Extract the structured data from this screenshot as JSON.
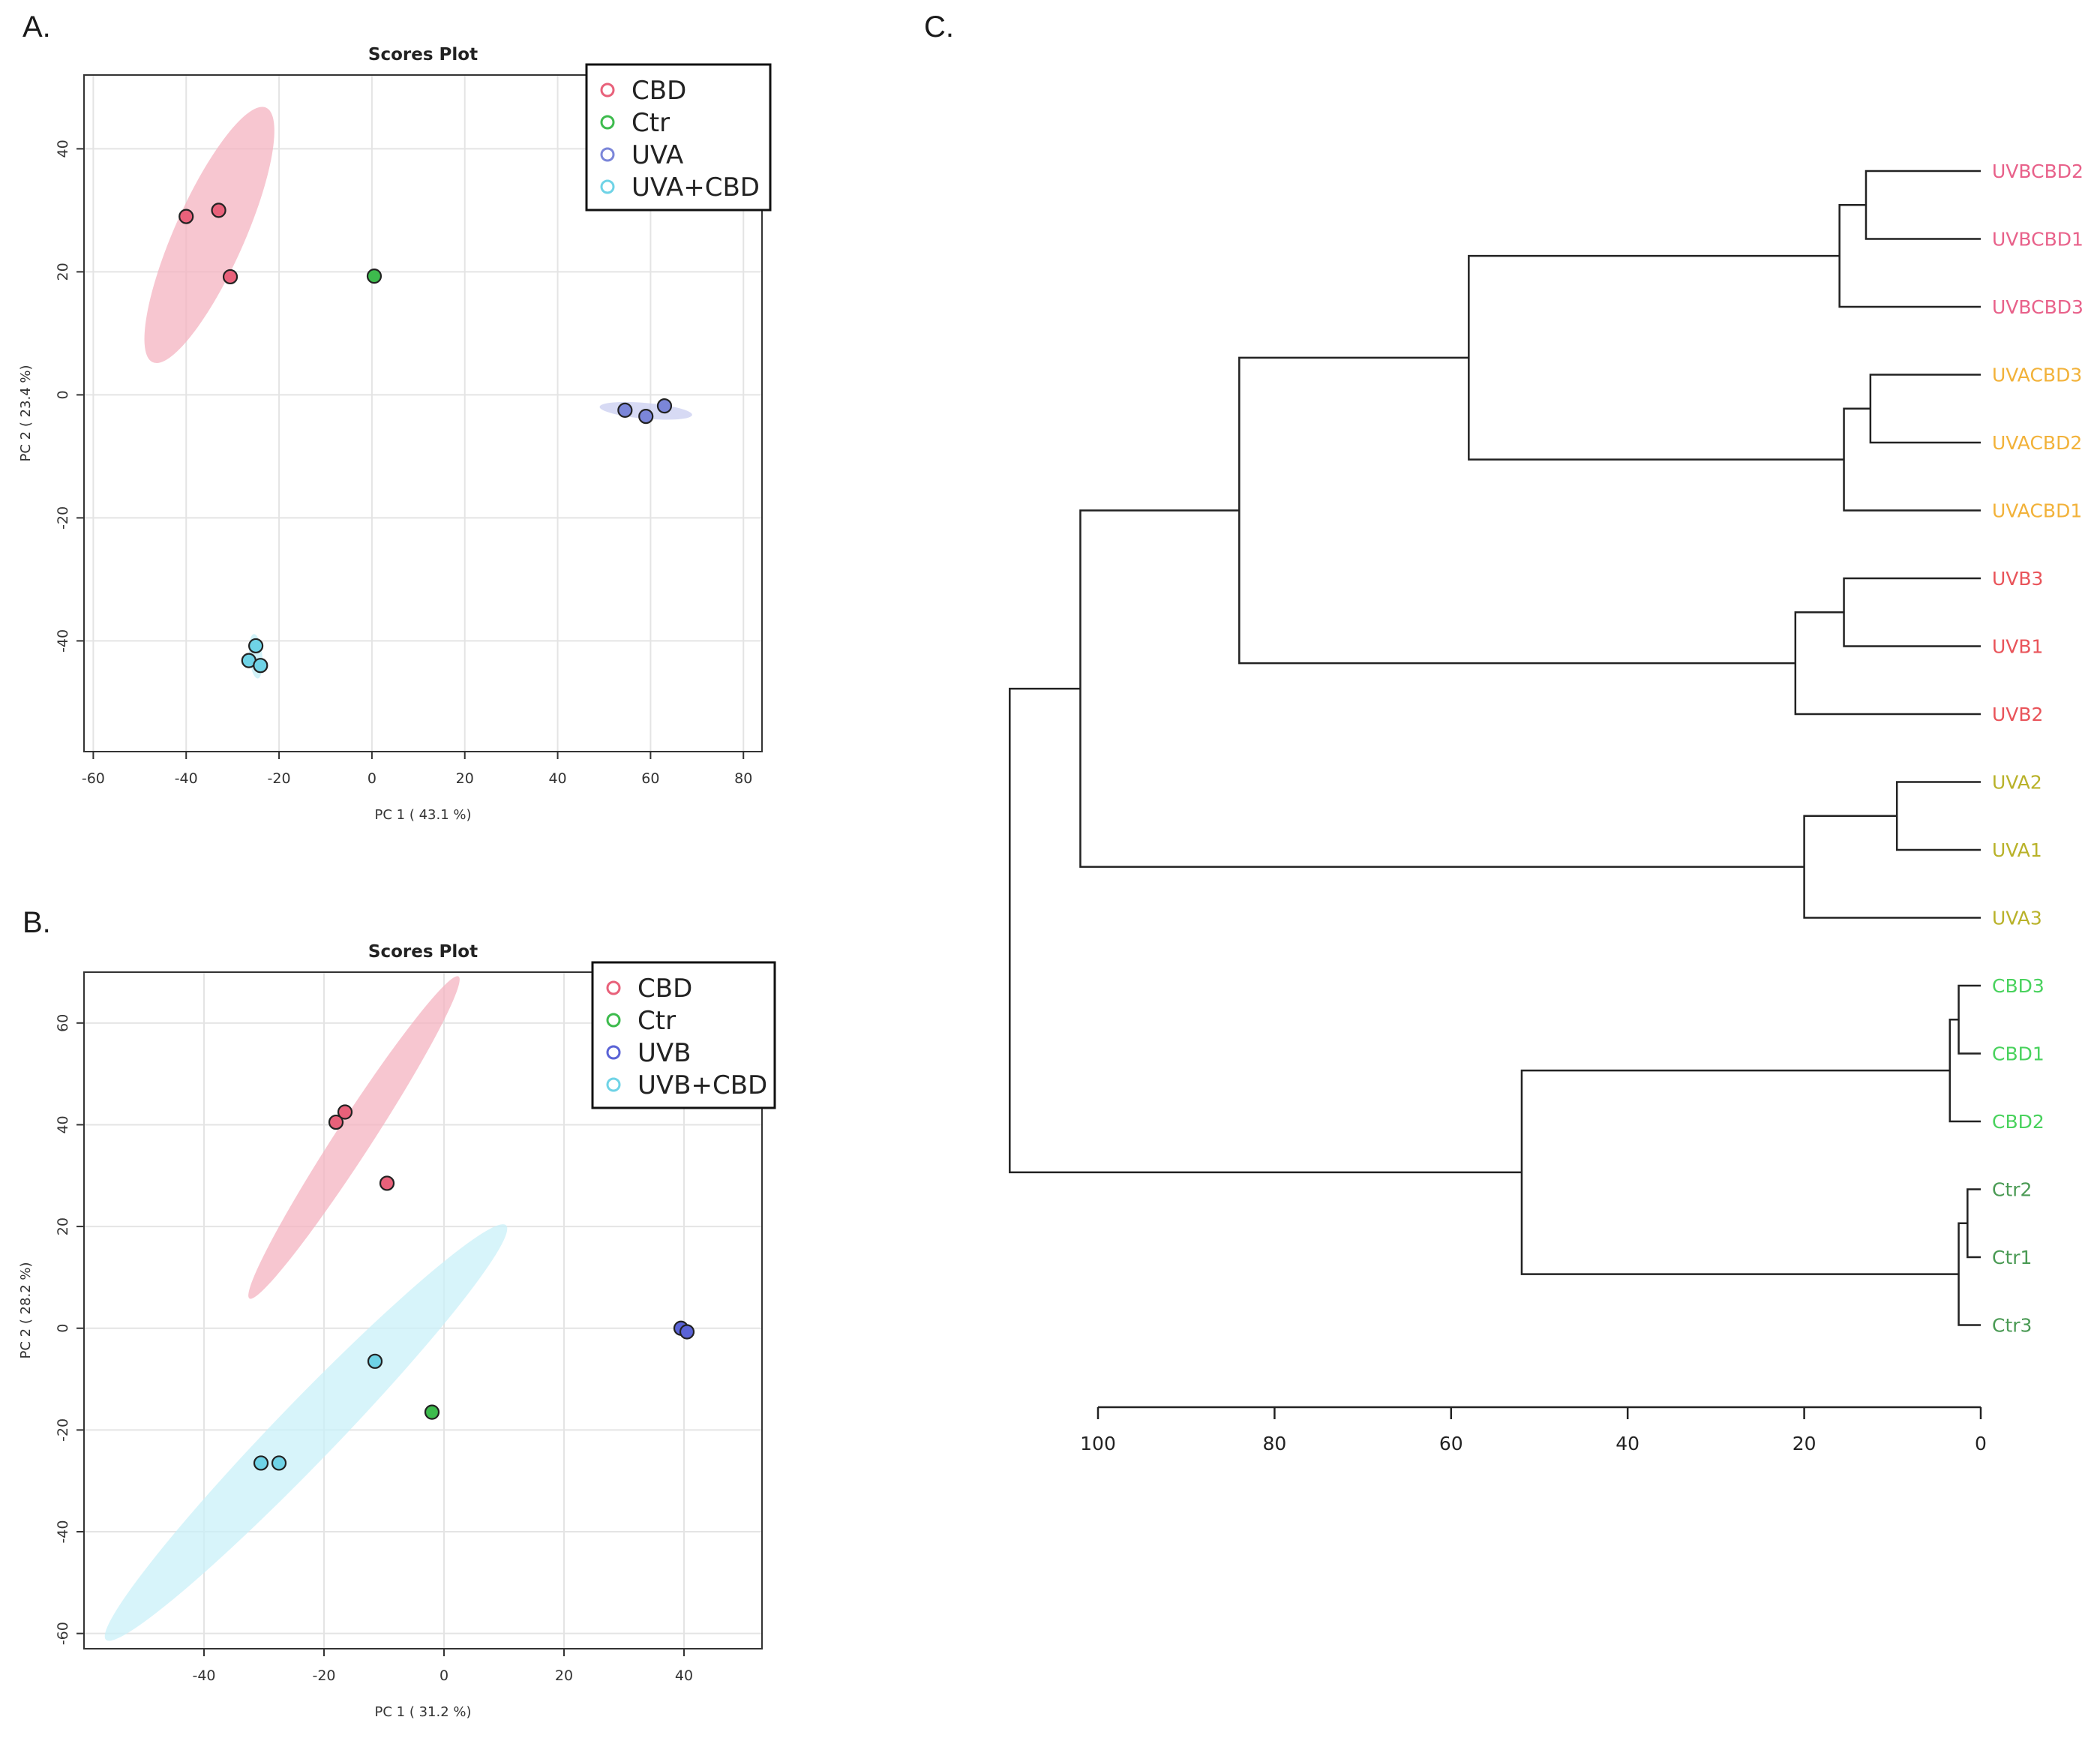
{
  "panels": {
    "a": {
      "letter": "A."
    },
    "b": {
      "letter": "B."
    },
    "c": {
      "letter": "C."
    }
  },
  "chart_data": [
    {
      "id": "A",
      "type": "scatter",
      "title": "Scores Plot",
      "xlabel": "PC 1 ( 43.1 %)",
      "ylabel": "PC 2 ( 23.4 %)",
      "xlim": [
        -62,
        84
      ],
      "ylim": [
        -58,
        52
      ],
      "xticks": [
        -60,
        -40,
        -20,
        0,
        20,
        40,
        60,
        80
      ],
      "yticks": [
        -40,
        -20,
        0,
        20,
        40
      ],
      "grid": true,
      "legend_position": "top-right",
      "series": [
        {
          "name": "CBD",
          "color": "#e8617a",
          "ellipse_color": "#f4b3c0",
          "points": [
            [
              -40,
              29
            ],
            [
              -33,
              30
            ],
            [
              -30.5,
              19.2
            ]
          ],
          "ellipse": {
            "center": [
              -35,
              26
            ],
            "rx": 30,
            "ry": 7.5,
            "angle_deg": -66
          }
        },
        {
          "name": "Ctr",
          "color": "#3dbb4d",
          "ellipse_color": "#b8e6be",
          "points": [
            [
              0.5,
              19.3
            ]
          ],
          "ellipse": null
        },
        {
          "name": "UVA",
          "color": "#7b86d9",
          "ellipse_color": "#c9cdf0",
          "points": [
            [
              54.5,
              -2.5
            ],
            [
              59,
              -3.5
            ],
            [
              63,
              -1.8
            ]
          ],
          "ellipse": {
            "center": [
              59,
              -2.6
            ],
            "rx": 10,
            "ry": 1.7,
            "angle_deg": 5
          }
        },
        {
          "name": "UVA+CBD",
          "color": "#6fd3e6",
          "ellipse_color": "#c3eef6",
          "points": [
            [
              -25,
              -40.8
            ],
            [
              -26.5,
              -43.2
            ],
            [
              -24,
              -44
            ]
          ],
          "ellipse": {
            "center": [
              -25,
              -42.5
            ],
            "rx": 4.8,
            "ry": 1.4,
            "angle_deg": 85
          }
        }
      ]
    },
    {
      "id": "B",
      "type": "scatter",
      "title": "Scores Plot",
      "xlabel": "PC 1 ( 31.2 %)",
      "ylabel": "PC 2 ( 28.2 %)",
      "xlim": [
        -60,
        53
      ],
      "ylim": [
        -63,
        70
      ],
      "xticks": [
        -40,
        -20,
        0,
        20,
        40
      ],
      "yticks": [
        -60,
        -40,
        -20,
        0,
        20,
        40,
        60
      ],
      "grid": true,
      "legend_position": "top-right",
      "series": [
        {
          "name": "CBD",
          "color": "#e8617a",
          "ellipse_color": "#f4b3c0",
          "points": [
            [
              -18,
              40.5
            ],
            [
              -16.5,
              42.5
            ],
            [
              -9.5,
              28.5
            ]
          ],
          "ellipse": {
            "center": [
              -15,
              37.5
            ],
            "rx": 32,
            "ry": 3,
            "angle_deg": -57
          }
        },
        {
          "name": "Ctr",
          "color": "#3dbb4d",
          "ellipse_color": "#b8e6be",
          "points": [
            [
              -2,
              -16.5
            ]
          ],
          "ellipse": null
        },
        {
          "name": "UVB",
          "color": "#5a63d6",
          "ellipse_color": "#c9cdf0",
          "points": [
            [
              39.5,
              0
            ],
            [
              40.5,
              -0.7
            ]
          ],
          "ellipse": null
        },
        {
          "name": "UVB+CBD",
          "color": "#6fd3e6",
          "ellipse_color": "#c9f0f8",
          "points": [
            [
              -11.5,
              -6.5
            ],
            [
              -30.5,
              -26.5
            ],
            [
              -27.5,
              -26.5
            ]
          ],
          "ellipse": {
            "center": [
              -23,
              -20.5
            ],
            "rx": 48,
            "ry": 5,
            "angle_deg": -46
          }
        }
      ]
    },
    {
      "id": "C",
      "type": "dendrogram",
      "axis_ticks": [
        100,
        80,
        60,
        40,
        20,
        0
      ],
      "leaves": [
        {
          "label": "UVBCBD2",
          "color": "#e8618a"
        },
        {
          "label": "UVBCBD1",
          "color": "#e8618a"
        },
        {
          "label": "UVBCBD3",
          "color": "#e8618a"
        },
        {
          "label": "UVACBD3",
          "color": "#f2b23a"
        },
        {
          "label": "UVACBD2",
          "color": "#f2b23a"
        },
        {
          "label": "UVACBD1",
          "color": "#f2b23a"
        },
        {
          "label": "UVB3",
          "color": "#e9545a"
        },
        {
          "label": "UVB1",
          "color": "#e9545a"
        },
        {
          "label": "UVB2",
          "color": "#e9545a"
        },
        {
          "label": "UVA2",
          "color": "#b9b22a"
        },
        {
          "label": "UVA1",
          "color": "#b9b22a"
        },
        {
          "label": "UVA3",
          "color": "#b9b22a"
        },
        {
          "label": "CBD3",
          "color": "#49d25d"
        },
        {
          "label": "CBD1",
          "color": "#49d25d"
        },
        {
          "label": "CBD2",
          "color": "#49d25d"
        },
        {
          "label": "Ctr2",
          "color": "#4a9a54"
        },
        {
          "label": "Ctr1",
          "color": "#4a9a54"
        },
        {
          "label": "Ctr3",
          "color": "#4a9a54"
        }
      ],
      "merges": [
        {
          "a": "L0",
          "b": "L1",
          "height": 13
        },
        {
          "a": "m0",
          "b": "L2",
          "height": 16
        },
        {
          "a": "L3",
          "b": "L4",
          "height": 12.5
        },
        {
          "a": "m2",
          "b": "L5",
          "height": 15.5
        },
        {
          "a": "m1",
          "b": "m3",
          "height": 58
        },
        {
          "a": "L6",
          "b": "L7",
          "height": 15.5
        },
        {
          "a": "m5",
          "b": "L8",
          "height": 21
        },
        {
          "a": "m4",
          "b": "m6",
          "height": 84
        },
        {
          "a": "L9",
          "b": "L10",
          "height": 9.5
        },
        {
          "a": "m8",
          "b": "L11",
          "height": 20
        },
        {
          "a": "m7",
          "b": "m9",
          "height": 102
        },
        {
          "a": "L12",
          "b": "L13",
          "height": 2.5
        },
        {
          "a": "m11",
          "b": "L14",
          "height": 3.5
        },
        {
          "a": "L15",
          "b": "L16",
          "height": 1.5
        },
        {
          "a": "m13",
          "b": "L17",
          "height": 2.5
        },
        {
          "a": "m12",
          "b": "m14",
          "height": 52
        },
        {
          "a": "m10",
          "b": "m15",
          "height": 110
        }
      ]
    }
  ]
}
